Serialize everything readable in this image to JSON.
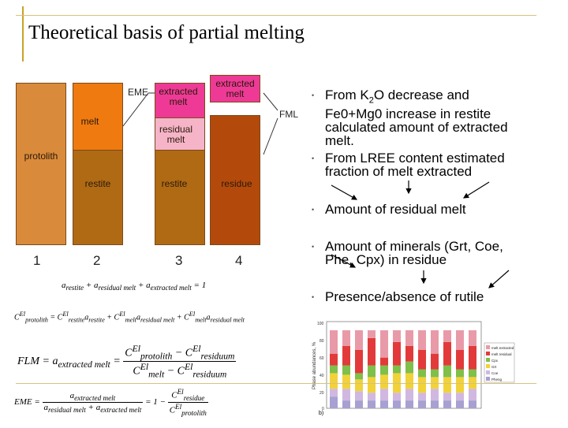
{
  "slide": {
    "title": "Theoretical basis of partial melting"
  },
  "diagram": {
    "columns": [
      {
        "number": "1",
        "label": "protolith"
      },
      {
        "number": "2",
        "melt": "melt",
        "restite": "restite"
      },
      {
        "number": "3",
        "extracted": "extracted melt",
        "residual": "residual melt",
        "restite": "restite"
      },
      {
        "number": "4",
        "extracted": "extracted melt",
        "residue": "residue"
      }
    ],
    "eme_label": "EME",
    "fml_label": "FML",
    "colors": {
      "protolith": "#d98a3a",
      "melt": "#ef7a10",
      "restite": "#b06a14",
      "extracted": "#ee3a96",
      "residual": "#f6b4c8",
      "residue": "#b34a0c"
    }
  },
  "bullets": [
    {
      "text": "From K2O decrease and Fe0+Mg0 increase in restite calculated amount of extracted melt."
    },
    {
      "text": "From LREE content estimated fraction of melt extracted"
    },
    {
      "text": "Amount of residual melt"
    },
    {
      "text": "Amount of minerals (Grt, Coe, Phe, Cpx) in residue"
    },
    {
      "text": "Presence/absence of rutile"
    }
  ],
  "bullet_lines": {
    "b1": [
      "From K",
      "2",
      "O decrease and",
      "Fe0+Mg0 increase in restite",
      "calculated amount of extracted",
      "melt."
    ],
    "b2": [
      "From LREE content estimated",
      "fraction of melt extracted"
    ],
    "b4": [
      "Amount of minerals (Grt, Coe,",
      "Phe, Cpx) in residue"
    ]
  },
  "formulas": {
    "f1": "a_restite + a_residual melt + a_extracted melt = 1",
    "f2": "C^El_protolith = C^El_restite a_restite + C^El_melt a_residual melt + C^El_melt a_residual melt",
    "f3": "FLM = a_extracted melt = (C^El_protolith - C^El_residuum) / (C^El_melt - C^El_residuum)",
    "f4": "EME = a_extracted melt / (a_residual melt + a_extracted melt) = 1 - C^El_residue / C^El_protolith"
  },
  "chart": {
    "ylabel": "Phase abundances, %",
    "yticks": [
      "100",
      "80",
      "60",
      "40",
      "20",
      "0"
    ],
    "panel_label": "b)",
    "legend": [
      "melt extracted",
      "melt residual",
      "Cpx",
      "Grt",
      "Coe",
      "Pheng"
    ],
    "legend_colors": [
      "#e89aa8",
      "#e23a3a",
      "#7fbf4a",
      "#f2d23a",
      "#d0b8e0",
      "#a7a0d0"
    ]
  }
}
